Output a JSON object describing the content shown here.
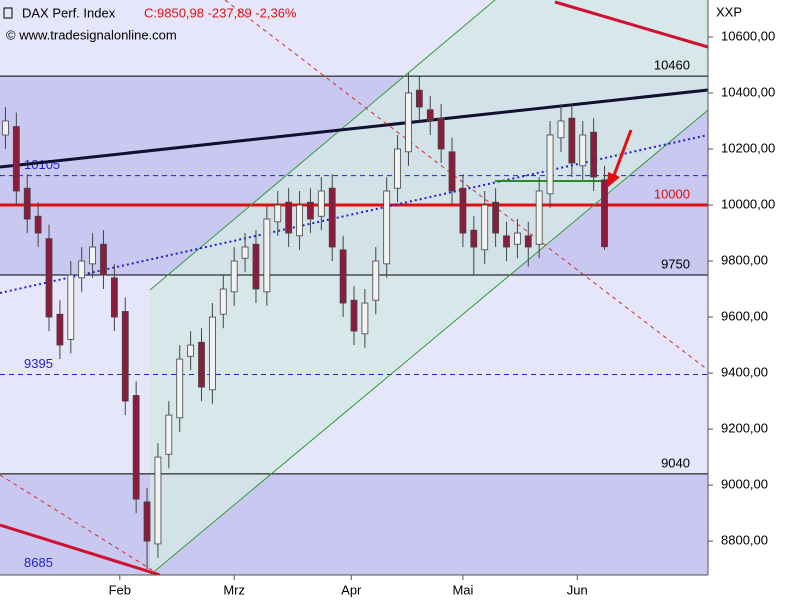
{
  "chart_data": {
    "type": "candlestick",
    "title": "DAX Perf. Index",
    "quote": "C:9850,98 -237,89 -2,36%",
    "source": "© www.tradesignalonline.com",
    "axis_title": "XXP",
    "up_color": "#f2f2f2",
    "down_color": "#8b1c3c",
    "wick_color": "#444444",
    "ylim": [
      8679,
      10732
    ],
    "yticks": [
      {
        "value": 8800,
        "label": "8800,00"
      },
      {
        "value": 9000,
        "label": "9000,00"
      },
      {
        "value": 9200,
        "label": "9200,00"
      },
      {
        "value": 9400,
        "label": "9400,00"
      },
      {
        "value": 9600,
        "label": "9600,00"
      },
      {
        "value": 9800,
        "label": "9800,00"
      },
      {
        "value": 10000,
        "label": "10000,00"
      },
      {
        "value": 10200,
        "label": "10200,00"
      },
      {
        "value": 10400,
        "label": "10400,00"
      },
      {
        "value": 10600,
        "label": "10600,00"
      }
    ],
    "xlim": [
      0,
      130
    ],
    "xticks": [
      {
        "value": 22,
        "label": "Feb"
      },
      {
        "value": 43,
        "label": "Mrz"
      },
      {
        "value": 64.5,
        "label": "Apr"
      },
      {
        "value": 85,
        "label": "Mai"
      },
      {
        "value": 106,
        "label": "Jun"
      }
    ],
    "levels": [
      {
        "value": 10460,
        "color": "#000000",
        "style": "solid",
        "side": "right"
      },
      {
        "value": 10105,
        "color": "#2222cc",
        "style": "dashed",
        "side": "left"
      },
      {
        "value": 10000,
        "color": "#e01010",
        "style": "thick",
        "side": "right"
      },
      {
        "value": 9750,
        "color": "#000000",
        "style": "solid",
        "side": "right"
      },
      {
        "value": 9395,
        "color": "#2222cc",
        "style": "dashed",
        "side": "left"
      },
      {
        "value": 9040,
        "color": "#000000",
        "style": "solid",
        "side": "right"
      },
      {
        "value": 8685,
        "color": "#2222cc",
        "style": "none",
        "side": "left"
      }
    ],
    "x": [
      1,
      3,
      5,
      7,
      9,
      11,
      13,
      15,
      17,
      19,
      21,
      23,
      25,
      27,
      29,
      31,
      33,
      35,
      37,
      39,
      41,
      43,
      45,
      47,
      49,
      51,
      53,
      55,
      57,
      59,
      61,
      63,
      65,
      67,
      69,
      71,
      73,
      75,
      77,
      79,
      81,
      83,
      85,
      87,
      89,
      91,
      93,
      95,
      97,
      99,
      101,
      103,
      105,
      107,
      109,
      111
    ],
    "open": [
      10250,
      10280,
      10060,
      9960,
      9880,
      9610,
      9520,
      9740,
      9790,
      9860,
      9740,
      9620,
      9320,
      8940,
      8790,
      9110,
      9240,
      9460,
      9510,
      9340,
      9610,
      9690,
      9810,
      9860,
      9690,
      9940,
      10010,
      9890,
      10010,
      9960,
      10060,
      9840,
      9660,
      9540,
      9660,
      9790,
      10060,
      10190,
      10410,
      10340,
      10310,
      10190,
      10060,
      9910,
      9840,
      10010,
      9890,
      9860,
      9890,
      9860,
      10040,
      10240,
      10310,
      10140,
      10260,
      10090
    ],
    "high": [
      10350,
      10330,
      10110,
      10010,
      9930,
      9660,
      9800,
      9850,
      9900,
      9910,
      9790,
      9670,
      9370,
      8990,
      9150,
      9300,
      9500,
      9550,
      9560,
      9650,
      9750,
      9850,
      9900,
      9910,
      10000,
      10050,
      10060,
      10050,
      10060,
      10100,
      10110,
      9890,
      9710,
      9700,
      9850,
      10100,
      10250,
      10470,
      10460,
      10390,
      10360,
      10240,
      10110,
      9960,
      10050,
      10060,
      9940,
      9950,
      9940,
      10100,
      10300,
      10360,
      10360,
      10300,
      10310,
      10140
    ],
    "low": [
      10200,
      10000,
      9900,
      9850,
      9550,
      9450,
      9470,
      9690,
      9740,
      9700,
      9550,
      9250,
      8900,
      8700,
      8740,
      9060,
      9190,
      9410,
      9300,
      9290,
      9560,
      9640,
      9760,
      9650,
      9640,
      9890,
      9850,
      9840,
      9900,
      9910,
      9800,
      9600,
      9500,
      9490,
      9610,
      9740,
      10010,
      10140,
      10300,
      10250,
      10150,
      10000,
      9850,
      9750,
      9790,
      9850,
      9800,
      9810,
      9780,
      9810,
      9990,
      10190,
      10100,
      10090,
      10050,
      9840
    ],
    "close": [
      10300,
      10050,
      9950,
      9900,
      9600,
      9500,
      9750,
      9800,
      9850,
      9750,
      9600,
      9300,
      8950,
      8800,
      9100,
      9250,
      9450,
      9500,
      9350,
      9600,
      9700,
      9800,
      9850,
      9700,
      9950,
      10000,
      9900,
      10000,
      9950,
      10050,
      9850,
      9650,
      9550,
      9650,
      9800,
      10050,
      10200,
      10400,
      10350,
      10300,
      10200,
      10050,
      9900,
      9850,
      10000,
      9900,
      9850,
      9900,
      9850,
      10050,
      10250,
      10300,
      10150,
      10250,
      10100,
      9851
    ]
  }
}
